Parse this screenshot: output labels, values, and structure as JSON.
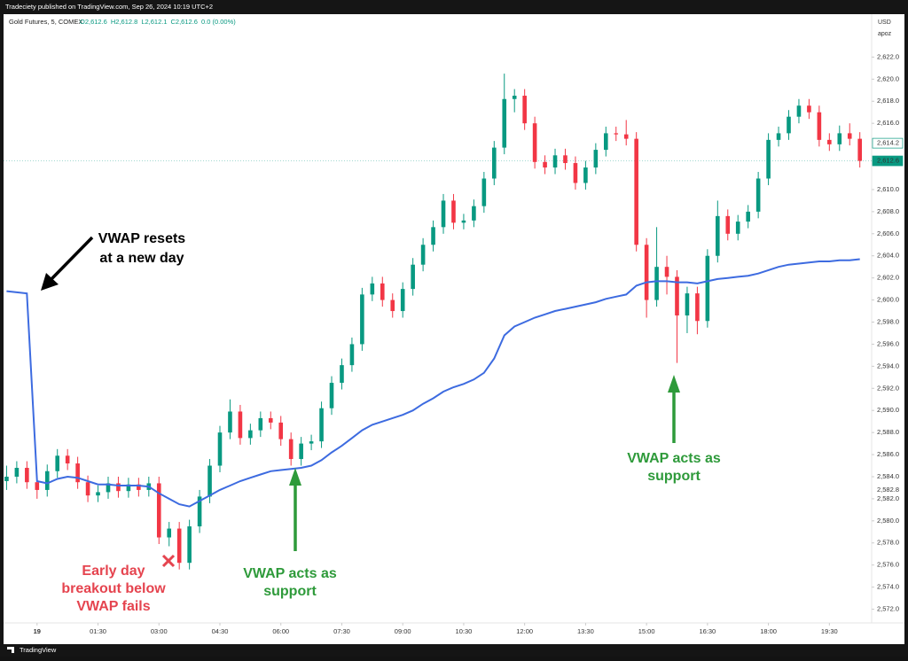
{
  "header": {
    "publisher": "Tradeciety published on TradingView.com, Sep 26, 2024 10:19 UTC+2",
    "footer": "TradingView"
  },
  "chart_data": {
    "type": "candlestick",
    "symbol": "Gold Futures, 5, COMEX",
    "legend_values": [
      "O2,612.6",
      "H2,612.8",
      "L2,612.1",
      "C2,612.6",
      "0.0 (0.00%)"
    ],
    "currency": "USD",
    "scale_label": "apoz",
    "up_color": "#089981",
    "down_color": "#f23645",
    "ohlc": [
      [
        2583.6,
        2585.0,
        2582.8,
        2584.0
      ],
      [
        2584.0,
        2585.4,
        2583.4,
        2584.8
      ],
      [
        2584.8,
        2585.4,
        2582.9,
        2583.5
      ],
      [
        2583.5,
        2584.1,
        2582.0,
        2582.8
      ],
      [
        2582.8,
        2585.1,
        2582.2,
        2584.5
      ],
      [
        2584.5,
        2586.5,
        2583.9,
        2585.9
      ],
      [
        2585.9,
        2586.5,
        2584.6,
        2585.2
      ],
      [
        2585.2,
        2585.8,
        2582.9,
        2583.5
      ],
      [
        2583.5,
        2584.1,
        2581.7,
        2582.3
      ],
      [
        2582.3,
        2583.2,
        2581.7,
        2582.6
      ],
      [
        2582.6,
        2584.0,
        2582.0,
        2583.4
      ],
      [
        2583.4,
        2584.0,
        2582.1,
        2582.7
      ],
      [
        2582.7,
        2583.9,
        2582.1,
        2583.3
      ],
      [
        2583.3,
        2583.9,
        2582.2,
        2582.8
      ],
      [
        2582.8,
        2584.0,
        2582.2,
        2583.4
      ],
      [
        2583.4,
        2584.0,
        2577.9,
        2578.5
      ],
      [
        2578.5,
        2579.9,
        2577.7,
        2579.3
      ],
      [
        2579.3,
        2579.9,
        2575.6,
        2576.2
      ],
      [
        2576.2,
        2580.1,
        2575.6,
        2579.5
      ],
      [
        2579.5,
        2582.8,
        2578.9,
        2582.2
      ],
      [
        2582.2,
        2585.6,
        2581.6,
        2585.0
      ],
      [
        2585.0,
        2588.6,
        2584.4,
        2588.0
      ],
      [
        2588.0,
        2591.0,
        2587.4,
        2589.9
      ],
      [
        2589.9,
        2590.5,
        2586.9,
        2587.5
      ],
      [
        2587.5,
        2588.8,
        2586.9,
        2588.2
      ],
      [
        2588.2,
        2589.9,
        2587.6,
        2589.3
      ],
      [
        2589.3,
        2589.9,
        2588.3,
        2588.9
      ],
      [
        2588.9,
        2589.5,
        2586.8,
        2587.4
      ],
      [
        2587.4,
        2588.0,
        2585.0,
        2585.6
      ],
      [
        2585.6,
        2587.6,
        2585.0,
        2587.0
      ],
      [
        2587.0,
        2587.8,
        2586.4,
        2587.2
      ],
      [
        2587.2,
        2590.8,
        2586.6,
        2590.2
      ],
      [
        2590.2,
        2593.1,
        2589.6,
        2592.5
      ],
      [
        2592.5,
        2594.7,
        2591.9,
        2594.1
      ],
      [
        2594.1,
        2596.6,
        2593.5,
        2596.0
      ],
      [
        2596.0,
        2601.1,
        2595.4,
        2600.5
      ],
      [
        2600.5,
        2602.1,
        2599.9,
        2601.5
      ],
      [
        2601.5,
        2602.1,
        2599.4,
        2600.0
      ],
      [
        2600.0,
        2600.6,
        2598.4,
        2599.0
      ],
      [
        2599.0,
        2601.6,
        2598.4,
        2601.0
      ],
      [
        2601.0,
        2603.8,
        2600.4,
        2603.2
      ],
      [
        2603.2,
        2605.6,
        2602.6,
        2605.0
      ],
      [
        2605.0,
        2607.2,
        2604.4,
        2606.6
      ],
      [
        2606.6,
        2609.6,
        2606.0,
        2609.0
      ],
      [
        2609.0,
        2609.6,
        2606.4,
        2607.0
      ],
      [
        2607.0,
        2607.8,
        2606.4,
        2607.2
      ],
      [
        2607.2,
        2609.1,
        2606.6,
        2608.5
      ],
      [
        2608.5,
        2611.6,
        2607.9,
        2611.0
      ],
      [
        2611.0,
        2614.4,
        2610.4,
        2613.8
      ],
      [
        2613.8,
        2620.5,
        2613.2,
        2618.2
      ],
      [
        2618.2,
        2619.1,
        2617.0,
        2618.5
      ],
      [
        2618.5,
        2619.1,
        2615.4,
        2616.0
      ],
      [
        2616.0,
        2616.6,
        2611.9,
        2612.5
      ],
      [
        2612.5,
        2613.1,
        2611.4,
        2612.0
      ],
      [
        2612.0,
        2613.7,
        2611.4,
        2613.1
      ],
      [
        2613.1,
        2613.7,
        2611.8,
        2612.4
      ],
      [
        2612.4,
        2613.0,
        2610.0,
        2610.6
      ],
      [
        2610.6,
        2612.6,
        2610.0,
        2612.0
      ],
      [
        2612.0,
        2614.2,
        2611.4,
        2613.6
      ],
      [
        2613.6,
        2615.7,
        2613.0,
        2615.1
      ],
      [
        2615.1,
        2615.7,
        2614.4,
        2615.0
      ],
      [
        2615.0,
        2616.3,
        2614.0,
        2614.6
      ],
      [
        2614.6,
        2615.2,
        2604.4,
        2605.0
      ],
      [
        2605.0,
        2605.6,
        2598.4,
        2600.0
      ],
      [
        2600.0,
        2606.6,
        2599.4,
        2603.0
      ],
      [
        2603.0,
        2604.0,
        2600.5,
        2602.1
      ],
      [
        2602.1,
        2602.7,
        2594.3,
        2598.6
      ],
      [
        2598.6,
        2601.2,
        2597.0,
        2600.6
      ],
      [
        2600.6,
        2601.2,
        2596.9,
        2598.1
      ],
      [
        2598.1,
        2604.6,
        2597.5,
        2604.0
      ],
      [
        2604.0,
        2609.0,
        2603.4,
        2607.6
      ],
      [
        2607.6,
        2608.2,
        2605.4,
        2606.0
      ],
      [
        2606.0,
        2607.7,
        2605.4,
        2607.1
      ],
      [
        2607.1,
        2608.6,
        2606.5,
        2608.0
      ],
      [
        2608.0,
        2611.6,
        2607.4,
        2611.0
      ],
      [
        2611.0,
        2615.1,
        2610.4,
        2614.5
      ],
      [
        2614.5,
        2615.7,
        2613.9,
        2615.1
      ],
      [
        2615.1,
        2617.2,
        2614.5,
        2616.6
      ],
      [
        2616.6,
        2618.2,
        2616.0,
        2617.6
      ],
      [
        2617.6,
        2618.2,
        2616.4,
        2617.0
      ],
      [
        2617.0,
        2617.6,
        2613.9,
        2614.5
      ],
      [
        2614.5,
        2615.1,
        2613.5,
        2614.1
      ],
      [
        2614.1,
        2615.8,
        2613.5,
        2615.1
      ],
      [
        2615.1,
        2616.0,
        2614.0,
        2614.6
      ],
      [
        2614.6,
        2615.2,
        2612.0,
        2612.6
      ]
    ],
    "vwap": {
      "color": "#3d6be0",
      "values": [
        2600.8,
        2600.7,
        2600.6,
        2583.6,
        2583.4,
        2583.8,
        2584.0,
        2583.9,
        2583.6,
        2583.3,
        2583.3,
        2583.2,
        2583.2,
        2583.2,
        2583.1,
        2582.5,
        2582.0,
        2581.5,
        2581.3,
        2581.8,
        2582.3,
        2582.8,
        2583.2,
        2583.6,
        2583.9,
        2584.2,
        2584.5,
        2584.6,
        2584.7,
        2584.8,
        2585.0,
        2585.5,
        2586.2,
        2586.8,
        2587.5,
        2588.2,
        2588.7,
        2589.0,
        2589.3,
        2589.6,
        2590.0,
        2590.6,
        2591.1,
        2591.7,
        2592.1,
        2592.4,
        2592.8,
        2593.4,
        2594.7,
        2596.8,
        2597.6,
        2598.0,
        2598.4,
        2598.7,
        2599.0,
        2599.2,
        2599.4,
        2599.6,
        2599.8,
        2600.1,
        2600.3,
        2600.5,
        2601.3,
        2601.6,
        2601.7,
        2601.7,
        2601.6,
        2601.6,
        2601.5,
        2601.7,
        2601.9,
        2602.0,
        2602.1,
        2602.2,
        2602.4,
        2602.7,
        2603.0,
        2603.2,
        2603.3,
        2603.4,
        2603.5,
        2603.5,
        2603.6,
        2603.6,
        2603.7
      ]
    },
    "xlim": [
      -0.3,
      84.9
    ],
    "xticks": [
      {
        "value": 3,
        "label": "19"
      },
      {
        "value": 9,
        "label": "01:30"
      },
      {
        "value": 15,
        "label": "03:00"
      },
      {
        "value": 21,
        "label": "04:30"
      },
      {
        "value": 27,
        "label": "06:00"
      },
      {
        "value": 33,
        "label": "07:30"
      },
      {
        "value": 39,
        "label": "09:00"
      },
      {
        "value": 45,
        "label": "10:30"
      },
      {
        "value": 51,
        "label": "12:00"
      },
      {
        "value": 57,
        "label": "13:30"
      },
      {
        "value": 63,
        "label": "15:00"
      },
      {
        "value": 69,
        "label": "16:30"
      },
      {
        "value": 75,
        "label": "18:00"
      },
      {
        "value": 81,
        "label": "19:30"
      }
    ],
    "ylim": [
      2571.0,
      2624.6
    ],
    "yticks": [
      {
        "value": 2572,
        "label": "2,572.0"
      },
      {
        "value": 2574,
        "label": "2,574.0"
      },
      {
        "value": 2576,
        "label": "2,576.0"
      },
      {
        "value": 2578,
        "label": "2,578.0"
      },
      {
        "value": 2580,
        "label": "2,580.0"
      },
      {
        "value": 2582,
        "label": "2,582.0"
      },
      {
        "value": 2584,
        "label": "2,584.0"
      },
      {
        "value": 2586,
        "label": "2,586.0"
      },
      {
        "value": 2588,
        "label": "2,588.0"
      },
      {
        "value": 2590,
        "label": "2,590.0"
      },
      {
        "value": 2592,
        "label": "2,592.0"
      },
      {
        "value": 2594,
        "label": "2,594.0"
      },
      {
        "value": 2596,
        "label": "2,596.0"
      },
      {
        "value": 2598,
        "label": "2,598.0"
      },
      {
        "value": 2600,
        "label": "2,600.0"
      },
      {
        "value": 2602,
        "label": "2,602.0"
      },
      {
        "value": 2604,
        "label": "2,604.0"
      },
      {
        "value": 2606,
        "label": "2,606.0"
      },
      {
        "value": 2608,
        "label": "2,608.0"
      },
      {
        "value": 2610,
        "label": "2,610.0"
      },
      {
        "value": 2616,
        "label": "2,616.0"
      },
      {
        "value": 2618,
        "label": "2,618.0"
      },
      {
        "value": 2620,
        "label": "2,620.0"
      },
      {
        "value": 2622,
        "label": "2,622.0"
      }
    ],
    "price_labels": [
      {
        "value": 2614.2,
        "label": "2,614.2"
      },
      {
        "value": 2612.6,
        "label": "2,612.6"
      },
      {
        "value": 2582.8,
        "label": "2,582.8"
      }
    ],
    "annotations": [
      {
        "lines": [
          "VWAP resets",
          "at a new day"
        ],
        "color": "#000000"
      },
      {
        "lines": [
          "Early day",
          "breakout below",
          "VWAP fails"
        ],
        "color": "#e5444f"
      },
      {
        "lines": [
          "VWAP acts as",
          "support"
        ],
        "color": "#2e9a3a"
      },
      {
        "lines": [
          "VWAP acts as",
          "support"
        ],
        "color": "#2e9a3a"
      }
    ]
  }
}
